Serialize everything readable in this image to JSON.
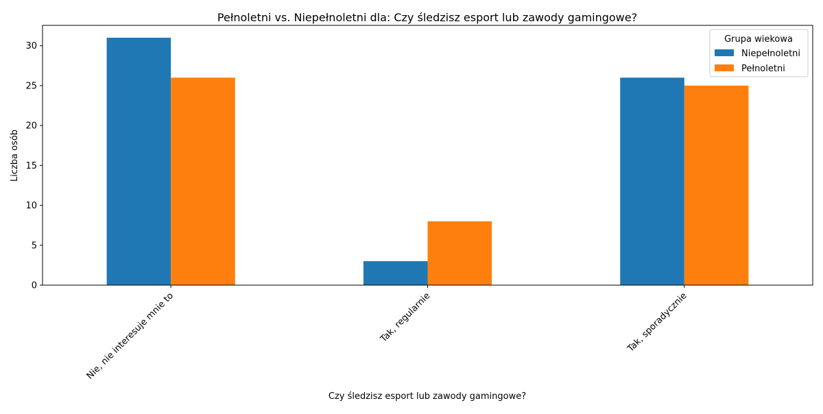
{
  "chart_data": {
    "type": "bar",
    "title": "Pełnoletni vs. Niepełnoletni dla: Czy śledzisz esport lub zawody gamingowe?",
    "xlabel": "Czy śledzisz esport lub zawody gamingowe?",
    "ylabel": "Liczba osób",
    "categories": [
      "Nie, nie interesuje mnie to",
      "Tak, regularnie",
      "Tak, sporadycznie"
    ],
    "series": [
      {
        "name": "Niepełnoletni",
        "values": [
          31,
          3,
          26
        ],
        "color": "#1f77b4"
      },
      {
        "name": "Pełnoletni",
        "values": [
          26,
          8,
          25
        ],
        "color": "#ff7f0e"
      }
    ],
    "ylim": [
      0,
      32.55
    ],
    "yticks": [
      0,
      5,
      10,
      15,
      20,
      25,
      30
    ],
    "legend": {
      "title": "Grupa wiekowa",
      "placement": "top-right"
    },
    "grid": false
  }
}
